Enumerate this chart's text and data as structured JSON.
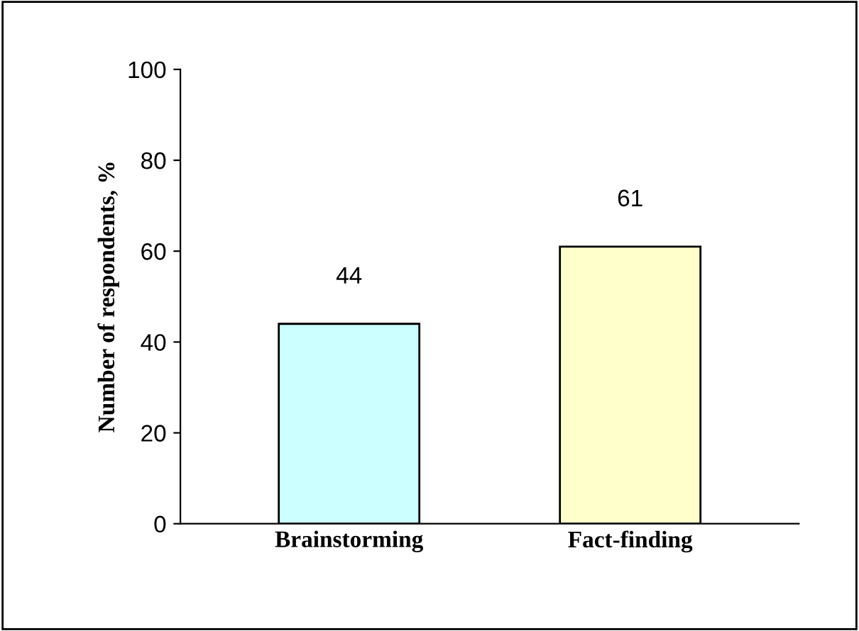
{
  "chart_data": {
    "type": "bar",
    "ylabel": "Number of respondents, %",
    "categories": [
      "Brainstorming",
      "Fact-finding"
    ],
    "values": [
      44,
      61
    ],
    "colors": [
      "#ccffff",
      "#ffffcc"
    ],
    "ylim": [
      0,
      100
    ],
    "yticks": [
      0,
      20,
      40,
      60,
      80,
      100
    ],
    "grid": false,
    "data_labels": true
  }
}
